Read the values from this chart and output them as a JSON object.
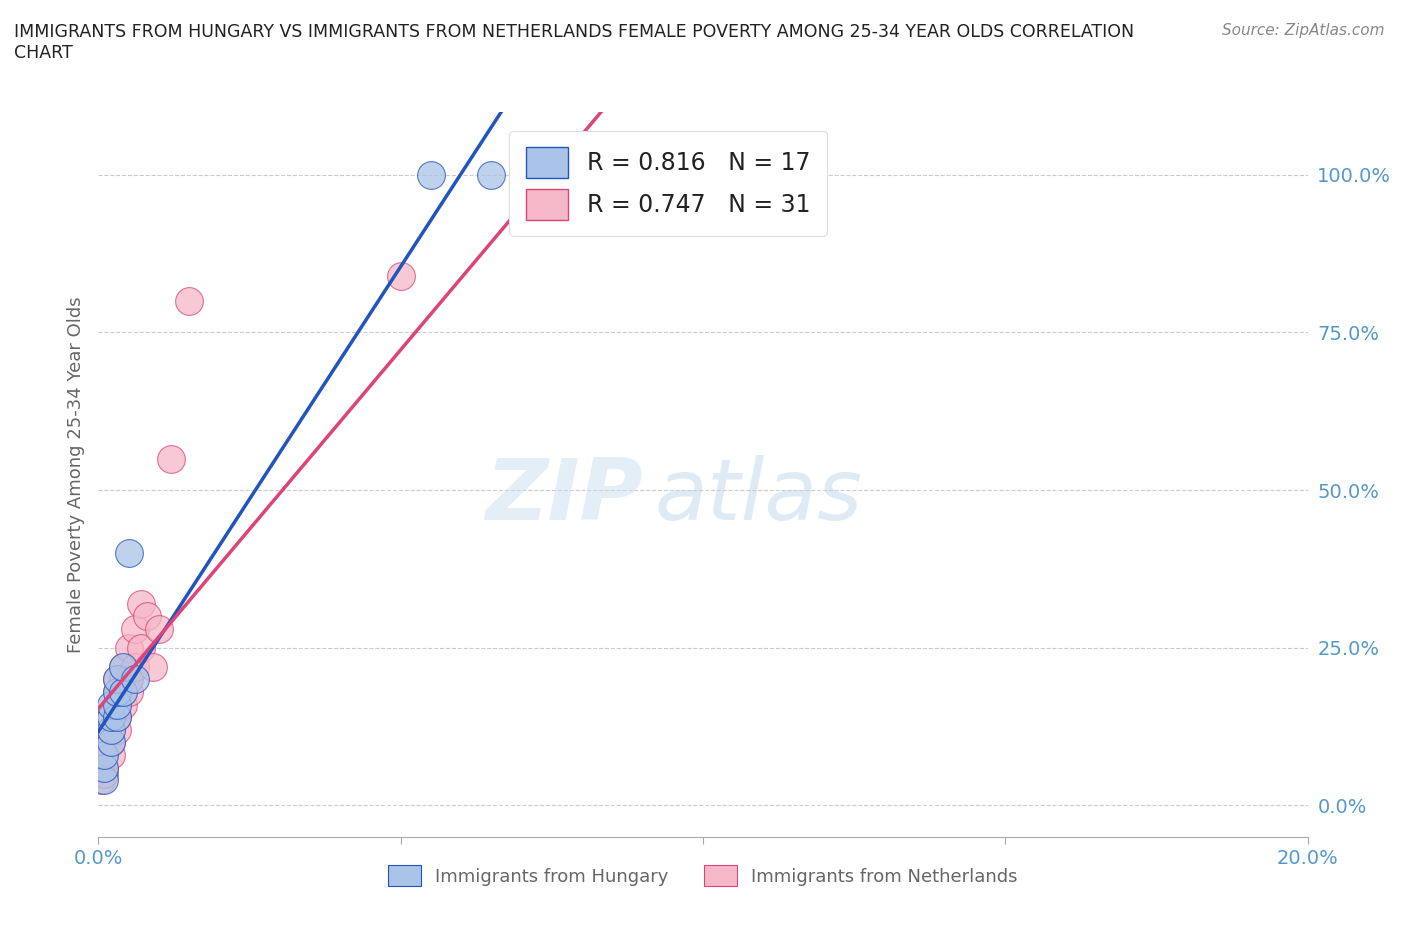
{
  "title": "IMMIGRANTS FROM HUNGARY VS IMMIGRANTS FROM NETHERLANDS FEMALE POVERTY AMONG 25-34 YEAR OLDS CORRELATION\nCHART",
  "source": "Source: ZipAtlas.com",
  "ylabel": "Female Poverty Among 25-34 Year Olds",
  "xlim": [
    0.0,
    0.2
  ],
  "ylim": [
    -0.05,
    1.1
  ],
  "yticks": [
    0.0,
    0.25,
    0.5,
    0.75,
    1.0
  ],
  "ytick_labels": [
    "0.0%",
    "25.0%",
    "50.0%",
    "75.0%",
    "100.0%"
  ],
  "xticks": [
    0.0,
    0.05,
    0.1,
    0.15,
    0.2
  ],
  "xtick_labels": [
    "0.0%",
    "",
    "",
    "",
    "20.0%"
  ],
  "watermark_zip": "ZIP",
  "watermark_atlas": "atlas",
  "hungary_R": 0.816,
  "hungary_N": 17,
  "netherlands_R": 0.747,
  "netherlands_N": 31,
  "hungary_color": "#aac4e8",
  "netherlands_color": "#f5b8c8",
  "hungary_line_color": "#2255bb",
  "netherlands_line_color": "#dd4477",
  "background_color": "#ffffff",
  "grid_color": "#cccccc",
  "hungary_x": [
    0.001,
    0.001,
    0.001,
    0.002,
    0.002,
    0.002,
    0.002,
    0.003,
    0.003,
    0.003,
    0.003,
    0.004,
    0.004,
    0.005,
    0.006,
    0.055,
    0.065
  ],
  "hungary_y": [
    0.04,
    0.06,
    0.08,
    0.1,
    0.12,
    0.14,
    0.16,
    0.14,
    0.16,
    0.18,
    0.2,
    0.18,
    0.22,
    0.4,
    0.2,
    1.0,
    1.0
  ],
  "netherlands_x": [
    0.0005,
    0.001,
    0.001,
    0.001,
    0.002,
    0.002,
    0.002,
    0.002,
    0.003,
    0.003,
    0.003,
    0.003,
    0.003,
    0.004,
    0.004,
    0.004,
    0.004,
    0.005,
    0.005,
    0.005,
    0.006,
    0.006,
    0.007,
    0.007,
    0.008,
    0.009,
    0.01,
    0.012,
    0.015,
    0.05,
    0.09
  ],
  "netherlands_y": [
    0.04,
    0.05,
    0.06,
    0.08,
    0.08,
    0.1,
    0.12,
    0.14,
    0.12,
    0.14,
    0.16,
    0.18,
    0.2,
    0.16,
    0.18,
    0.2,
    0.22,
    0.18,
    0.2,
    0.25,
    0.22,
    0.28,
    0.25,
    0.32,
    0.3,
    0.22,
    0.28,
    0.55,
    0.8,
    0.84,
    1.0
  ]
}
